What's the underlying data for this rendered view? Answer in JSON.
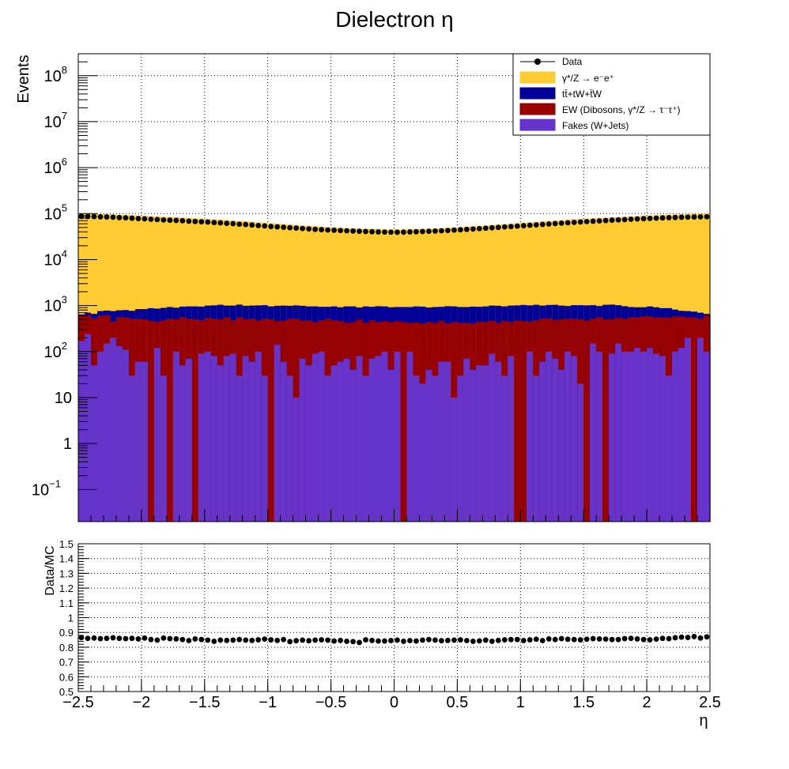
{
  "chart_data": [
    {
      "type": "histogram-stack",
      "title": "Dielectron η",
      "xlabel": "η",
      "ylabel": "Events",
      "xlim": [
        -2.5,
        2.5
      ],
      "ylim": [
        0.02,
        300000000
      ],
      "yscale": "log",
      "x_ticks": [
        "−2.5",
        "−2",
        "−1.5",
        "−1",
        "−0.5",
        "0",
        "0.5",
        "1",
        "1.5",
        "2",
        "2.5"
      ],
      "y_ticks": [
        {
          "value": 0.1,
          "mantissa": "10",
          "exp": "−1"
        },
        {
          "value": 1,
          "mantissa": "1",
          "exp": ""
        },
        {
          "value": 10,
          "mantissa": "10",
          "exp": ""
        },
        {
          "value": 100,
          "mantissa": "10",
          "exp": "2"
        },
        {
          "value": 1000,
          "mantissa": "10",
          "exp": "3"
        },
        {
          "value": 10000,
          "mantissa": "10",
          "exp": "4"
        },
        {
          "value": 100000,
          "mantissa": "10",
          "exp": "5"
        },
        {
          "value": 1000000,
          "mantissa": "10",
          "exp": "6"
        },
        {
          "value": 10000000,
          "mantissa": "10",
          "exp": "7"
        },
        {
          "value": 100000000,
          "mantissa": "10",
          "exp": "8"
        }
      ],
      "grid": true,
      "legend_position": "top-right",
      "legend": [
        {
          "label": "Data",
          "style": "marker",
          "color": "#000000"
        },
        {
          "label": "γ*/Z → e⁻e⁺",
          "style": "fill",
          "color": "#ffcc33"
        },
        {
          "label": "tt̄+tW+t̄W",
          "style": "fill",
          "color": "#000099"
        },
        {
          "label": "EW (Dibosons, γ*/Z → τ⁻τ⁺)",
          "style": "fill",
          "color": "#990000"
        },
        {
          "label": "Fakes (W+Jets)",
          "style": "fill",
          "color": "#6633cc"
        }
      ],
      "bin_edges_range": [
        -2.5,
        2.5
      ],
      "n_bins": 100,
      "stack_totals": {
        "fakes": [
          170,
          240,
          50,
          100,
          150,
          200,
          130,
          110,
          30,
          60,
          60,
          0,
          120,
          30,
          0,
          100,
          50,
          70,
          0,
          90,
          100,
          80,
          50,
          80,
          90,
          30,
          80,
          60,
          100,
          30,
          0,
          140,
          60,
          30,
          10,
          70,
          50,
          90,
          100,
          30,
          50,
          60,
          70,
          40,
          80,
          30,
          70,
          80,
          100,
          40,
          100,
          0,
          100,
          30,
          20,
          40,
          30,
          60,
          60,
          10,
          30,
          70,
          40,
          50,
          50,
          90,
          60,
          30,
          80,
          0,
          0,
          100,
          30,
          60,
          100,
          70,
          40,
          100,
          80,
          20,
          0,
          150,
          100,
          0,
          90,
          150,
          100,
          100,
          120,
          100,
          120,
          90,
          80,
          30,
          100,
          120,
          200,
          0,
          200,
          100
        ],
        "ew": [
          600,
          620,
          520,
          600,
          620,
          450,
          560,
          550,
          520,
          520,
          500,
          460,
          450,
          480,
          520,
          500,
          560,
          520,
          500,
          480,
          540,
          520,
          500,
          560,
          480,
          560,
          500,
          520,
          470,
          520,
          500,
          460,
          470,
          520,
          520,
          470,
          480,
          440,
          480,
          520,
          480,
          460,
          420,
          440,
          500,
          420,
          480,
          440,
          460,
          430,
          460,
          440,
          420,
          430,
          410,
          440,
          420,
          460,
          410,
          440,
          420,
          420,
          410,
          450,
          440,
          470,
          420,
          460,
          440,
          470,
          460,
          450,
          480,
          520,
          530,
          490,
          500,
          520,
          520,
          500,
          470,
          520,
          560,
          500,
          500,
          540,
          520,
          560,
          560,
          580,
          580,
          560,
          560,
          540,
          580,
          580,
          560,
          560,
          520,
          600
        ],
        "top": [
          640,
          700,
          660,
          760,
          780,
          760,
          790,
          800,
          770,
          840,
          840,
          880,
          860,
          890,
          930,
          900,
          950,
          960,
          960,
          950,
          1000,
          1010,
          1040,
          1000,
          1000,
          1050,
          990,
          1000,
          1010,
          1020,
          960,
          990,
          1000,
          990,
          1010,
          990,
          960,
          960,
          940,
          940,
          960,
          920,
          960,
          960,
          910,
          960,
          940,
          970,
          960,
          920,
          930,
          930,
          930,
          960,
          950,
          910,
          930,
          940,
          970,
          960,
          930,
          930,
          950,
          940,
          960,
          1000,
          990,
          960,
          1000,
          1010,
          1030,
          1010,
          1040,
          1000,
          1030,
          1040,
          1000,
          980,
          1020,
          1020,
          1010,
          1020,
          980,
          1040,
          1050,
          1020,
          970,
          930,
          920,
          920,
          960,
          920,
          880,
          880,
          820,
          770,
          760,
          740,
          700,
          660
        ],
        "zee": [
          100000,
          99500,
          99000,
          98000,
          97000,
          96000,
          95000,
          93500,
          92000,
          90500,
          89500,
          88000,
          86500,
          85000,
          84000,
          83000,
          81500,
          80000,
          79000,
          77500,
          76500,
          75000,
          73500,
          72000,
          70500,
          69000,
          67500,
          66000,
          64500,
          63000,
          61500,
          60500,
          59000,
          57500,
          56500,
          55000,
          54000,
          53000,
          52000,
          51000,
          50000,
          49000,
          48000,
          47500,
          47000,
          46500,
          46000,
          45500,
          45200,
          45000,
          45000,
          45200,
          45500,
          46000,
          46500,
          47000,
          47500,
          48000,
          49000,
          50000,
          51000,
          52000,
          53000,
          54000,
          55000,
          56500,
          57500,
          59000,
          60500,
          61500,
          63000,
          64500,
          66000,
          67500,
          69000,
          70500,
          72000,
          73500,
          75000,
          76500,
          77500,
          79000,
          80000,
          81500,
          83000,
          84000,
          85000,
          86500,
          88000,
          89500,
          90500,
          92000,
          93500,
          95000,
          96000,
          97000,
          98000,
          99000,
          99500,
          100000
        ]
      },
      "data_points": [
        87000,
        86500,
        86000,
        85000,
        84500,
        83500,
        82000,
        81000,
        79500,
        78000,
        77000,
        75500,
        74500,
        73000,
        72000,
        71000,
        70000,
        68500,
        67500,
        66500,
        65500,
        64000,
        63000,
        61500,
        60500,
        59000,
        58000,
        56500,
        55000,
        54000,
        52500,
        51500,
        50500,
        49500,
        48500,
        47500,
        46500,
        45500,
        44800,
        44000,
        43500,
        43000,
        42300,
        41800,
        41300,
        40800,
        40400,
        40000,
        39700,
        39500,
        39400,
        39600,
        40000,
        40400,
        40800,
        41300,
        41800,
        42300,
        43000,
        43800,
        44600,
        45400,
        46300,
        47200,
        48200,
        49200,
        50200,
        51300,
        52300,
        53500,
        54600,
        55800,
        57000,
        58200,
        59500,
        60700,
        62000,
        63200,
        64500,
        65800,
        67000,
        68300,
        69500,
        70700,
        72000,
        73200,
        74300,
        75500,
        76600,
        77700,
        78700,
        79700,
        80700,
        81600,
        82400,
        83200,
        83900,
        84500,
        85000,
        85500
      ],
      "ratio_panel": {
        "ylabel": "Data/MC",
        "ylim": [
          0.5,
          1.5
        ],
        "y_ticks": [
          "0.5",
          "0.6",
          "0.7",
          "0.8",
          "0.9",
          "1",
          "1.1",
          "1.2",
          "1.3",
          "1.4",
          "1.5"
        ],
        "values": [
          0.865,
          0.86,
          0.862,
          0.858,
          0.86,
          0.864,
          0.86,
          0.858,
          0.86,
          0.856,
          0.862,
          0.852,
          0.848,
          0.862,
          0.858,
          0.856,
          0.852,
          0.845,
          0.856,
          0.852,
          0.848,
          0.84,
          0.848,
          0.846,
          0.848,
          0.852,
          0.848,
          0.846,
          0.85,
          0.855,
          0.85,
          0.846,
          0.852,
          0.838,
          0.844,
          0.848,
          0.844,
          0.848,
          0.85,
          0.848,
          0.842,
          0.846,
          0.84,
          0.838,
          0.832,
          0.85,
          0.846,
          0.842,
          0.842,
          0.845,
          0.848,
          0.84,
          0.845,
          0.842,
          0.848,
          0.852,
          0.848,
          0.844,
          0.846,
          0.848,
          0.85,
          0.845,
          0.84,
          0.843,
          0.848,
          0.84,
          0.846,
          0.85,
          0.852,
          0.852,
          0.845,
          0.85,
          0.854,
          0.845,
          0.856,
          0.852,
          0.858,
          0.854,
          0.852,
          0.85,
          0.854,
          0.858,
          0.856,
          0.855,
          0.852,
          0.852,
          0.858,
          0.86,
          0.856,
          0.852,
          0.85,
          0.855,
          0.86,
          0.858,
          0.864,
          0.868,
          0.866,
          0.872,
          0.862,
          0.87
        ]
      }
    }
  ]
}
